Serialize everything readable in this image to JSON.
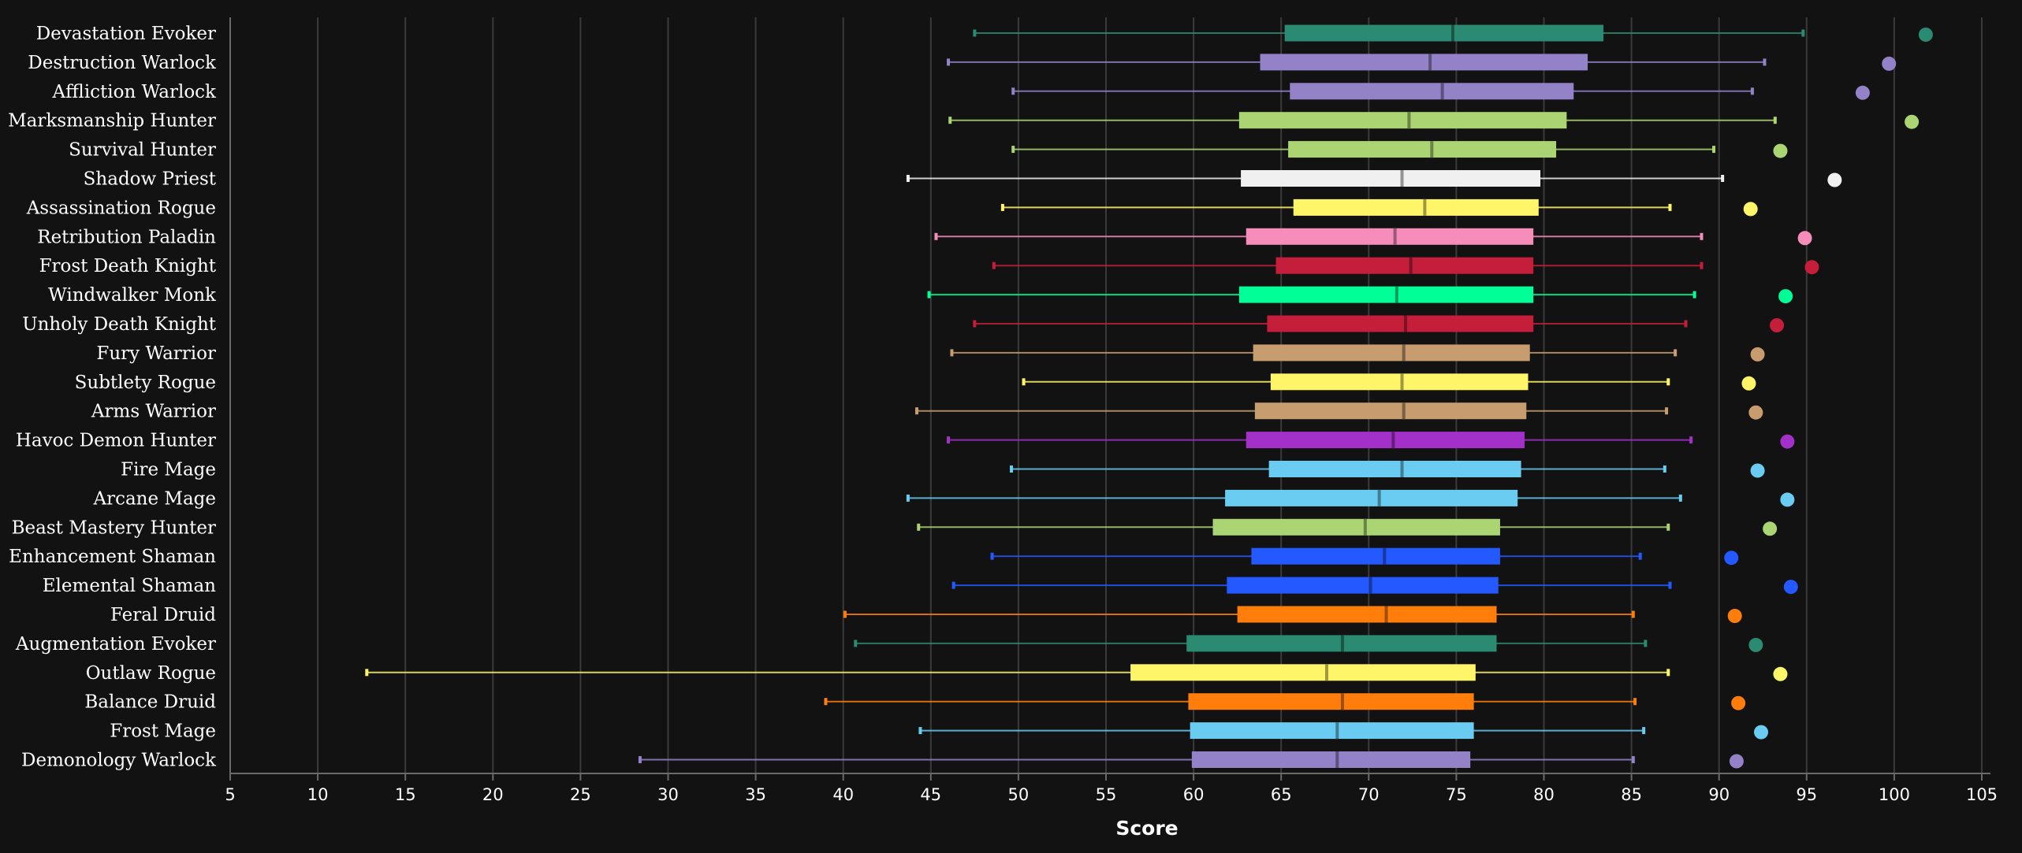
{
  "chart_data": {
    "type": "boxplot",
    "title": "",
    "xlabel": "Score",
    "ylabel": "",
    "xlim": [
      5,
      107
    ],
    "xticks": [
      5,
      10,
      15,
      20,
      25,
      30,
      35,
      40,
      45,
      50,
      55,
      60,
      65,
      70,
      75,
      80,
      85,
      90,
      95,
      100,
      105
    ],
    "grid": "vertical",
    "legend": "none",
    "series": [
      {
        "name": "Devastation Evoker",
        "color": "#2a8a72",
        "min": 47.5,
        "q1": 65.2,
        "median": 74.8,
        "q3": 83.4,
        "max": 94.8,
        "top": 101.8
      },
      {
        "name": "Destruction Warlock",
        "color": "#9482c9",
        "min": 46.0,
        "q1": 63.8,
        "median": 73.5,
        "q3": 82.5,
        "max": 92.6,
        "top": 99.7
      },
      {
        "name": "Affliction Warlock",
        "color": "#9482c9",
        "min": 49.7,
        "q1": 65.5,
        "median": 74.2,
        "q3": 81.7,
        "max": 91.9,
        "top": 98.2
      },
      {
        "name": "Marksmanship Hunter",
        "color": "#abd473",
        "min": 46.1,
        "q1": 62.6,
        "median": 72.3,
        "q3": 81.3,
        "max": 93.2,
        "top": 101.0
      },
      {
        "name": "Survival Hunter",
        "color": "#abd473",
        "min": 49.7,
        "q1": 65.4,
        "median": 73.6,
        "q3": 80.7,
        "max": 89.7,
        "top": 93.5
      },
      {
        "name": "Shadow Priest",
        "color": "#f0f0f0",
        "min": 43.7,
        "q1": 62.7,
        "median": 71.9,
        "q3": 79.8,
        "max": 90.2,
        "top": 96.6
      },
      {
        "name": "Assassination Rogue",
        "color": "#fff569",
        "min": 49.1,
        "q1": 65.7,
        "median": 73.2,
        "q3": 79.7,
        "max": 87.2,
        "top": 91.8
      },
      {
        "name": "Retribution Paladin",
        "color": "#f58cba",
        "min": 45.3,
        "q1": 63.0,
        "median": 71.5,
        "q3": 79.4,
        "max": 89.0,
        "top": 94.9
      },
      {
        "name": "Frost Death Knight",
        "color": "#c41e3a",
        "min": 48.6,
        "q1": 64.7,
        "median": 72.4,
        "q3": 79.4,
        "max": 89.0,
        "top": 95.3
      },
      {
        "name": "Windwalker Monk",
        "color": "#00ff96",
        "min": 44.9,
        "q1": 62.6,
        "median": 71.6,
        "q3": 79.4,
        "max": 88.6,
        "top": 93.8
      },
      {
        "name": "Unholy Death Knight",
        "color": "#c41e3a",
        "min": 47.5,
        "q1": 64.2,
        "median": 72.1,
        "q3": 79.4,
        "max": 88.1,
        "top": 93.3
      },
      {
        "name": "Fury Warrior",
        "color": "#c79c6e",
        "min": 46.2,
        "q1": 63.4,
        "median": 72.0,
        "q3": 79.2,
        "max": 87.5,
        "top": 92.2
      },
      {
        "name": "Subtlety Rogue",
        "color": "#fff569",
        "min": 50.3,
        "q1": 64.4,
        "median": 71.9,
        "q3": 79.1,
        "max": 87.1,
        "top": 91.7
      },
      {
        "name": "Arms Warrior",
        "color": "#c79c6e",
        "min": 44.2,
        "q1": 63.5,
        "median": 72.0,
        "q3": 79.0,
        "max": 87.0,
        "top": 92.1
      },
      {
        "name": "Havoc Demon Hunter",
        "color": "#a330c9",
        "min": 46.0,
        "q1": 63.0,
        "median": 71.4,
        "q3": 78.9,
        "max": 88.4,
        "top": 93.9
      },
      {
        "name": "Fire Mage",
        "color": "#69ccf0",
        "min": 49.6,
        "q1": 64.3,
        "median": 71.9,
        "q3": 78.7,
        "max": 86.9,
        "top": 92.2
      },
      {
        "name": "Arcane Mage",
        "color": "#69ccf0",
        "min": 43.7,
        "q1": 61.8,
        "median": 70.6,
        "q3": 78.5,
        "max": 87.8,
        "top": 93.9
      },
      {
        "name": "Beast Mastery Hunter",
        "color": "#abd473",
        "min": 44.3,
        "q1": 61.1,
        "median": 69.8,
        "q3": 77.5,
        "max": 87.1,
        "top": 92.9
      },
      {
        "name": "Enhancement Shaman",
        "color": "#2459ff",
        "min": 48.5,
        "q1": 63.3,
        "median": 70.9,
        "q3": 77.5,
        "max": 85.5,
        "top": 90.7
      },
      {
        "name": "Elemental Shaman",
        "color": "#2459ff",
        "min": 46.3,
        "q1": 61.9,
        "median": 70.1,
        "q3": 77.4,
        "max": 87.2,
        "top": 94.1
      },
      {
        "name": "Feral Druid",
        "color": "#ff7d0a",
        "min": 40.1,
        "q1": 62.5,
        "median": 71.0,
        "q3": 77.3,
        "max": 85.1,
        "top": 90.9
      },
      {
        "name": "Augmentation Evoker",
        "color": "#2a8a72",
        "min": 40.7,
        "q1": 59.6,
        "median": 68.5,
        "q3": 77.3,
        "max": 85.8,
        "top": 92.1
      },
      {
        "name": "Outlaw Rogue",
        "color": "#fff569",
        "min": 12.8,
        "q1": 56.4,
        "median": 67.6,
        "q3": 76.1,
        "max": 87.1,
        "top": 93.5
      },
      {
        "name": "Balance Druid",
        "color": "#ff7d0a",
        "min": 39.0,
        "q1": 59.7,
        "median": 68.5,
        "q3": 76.0,
        "max": 85.2,
        "top": 91.1
      },
      {
        "name": "Frost Mage",
        "color": "#69ccf0",
        "min": 44.4,
        "q1": 59.8,
        "median": 68.2,
        "q3": 76.0,
        "max": 85.7,
        "top": 92.4
      },
      {
        "name": "Demonology Warlock",
        "color": "#9482c9",
        "min": 28.4,
        "q1": 59.9,
        "median": 68.2,
        "q3": 75.8,
        "max": 85.1,
        "top": 91.0
      }
    ]
  }
}
